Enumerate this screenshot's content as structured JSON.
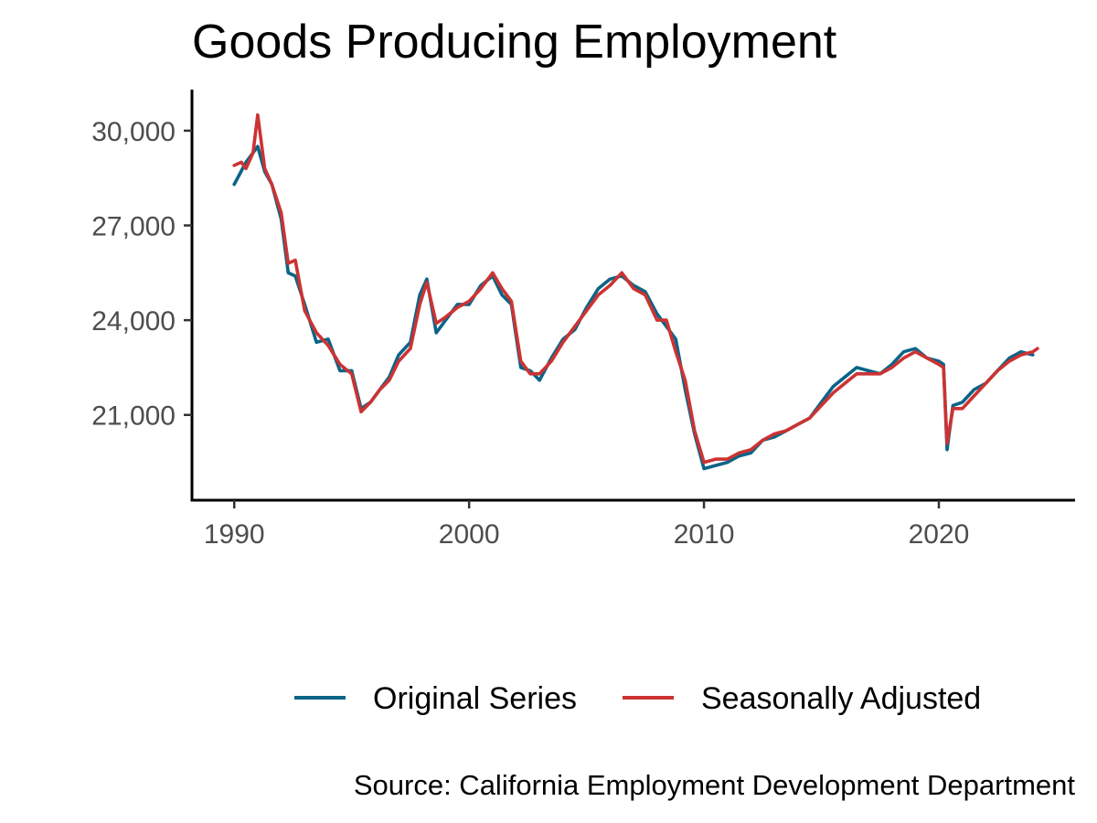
{
  "chart_data": {
    "type": "line",
    "title": "Goods Producing Employment",
    "xlabel": "",
    "ylabel": "",
    "xlim": [
      1988.2,
      2025.8
    ],
    "ylim": [
      18300,
      31300
    ],
    "x_ticks": [
      1990,
      2000,
      2010,
      2020
    ],
    "x_tick_labels": [
      "1990",
      "2000",
      "2010",
      "2020"
    ],
    "y_ticks": [
      21000,
      24000,
      27000,
      30000
    ],
    "y_tick_labels": [
      "21,000",
      "24,000",
      "27,000",
      "30,000"
    ],
    "grid": false,
    "legend_position": "bottom",
    "caption": "Source: California Employment Development Department",
    "series": [
      {
        "name": "Original Series",
        "color": "#0b6487",
        "x": [
          1990.0,
          1990.5,
          1991.0,
          1991.3,
          1991.6,
          1992.0,
          1992.3,
          1992.6,
          1993.0,
          1993.5,
          1994.0,
          1994.5,
          1995.0,
          1995.4,
          1995.8,
          1996.2,
          1996.6,
          1997.0,
          1997.5,
          1997.9,
          1998.2,
          1998.6,
          1999.0,
          1999.5,
          2000.0,
          2000.5,
          2001.0,
          2001.4,
          2001.8,
          2002.2,
          2002.6,
          2003.0,
          2003.5,
          2004.0,
          2004.5,
          2005.0,
          2005.5,
          2006.0,
          2006.5,
          2007.0,
          2007.5,
          2008.0,
          2008.4,
          2008.8,
          2009.2,
          2009.6,
          2010.0,
          2010.5,
          2011.0,
          2011.5,
          2012.0,
          2012.5,
          2013.0,
          2013.5,
          2014.0,
          2014.5,
          2015.0,
          2015.5,
          2016.0,
          2016.5,
          2017.0,
          2017.5,
          2018.0,
          2018.5,
          2019.0,
          2019.5,
          2020.0,
          2020.2,
          2020.35,
          2020.6,
          2021.0,
          2021.5,
          2022.0,
          2022.5,
          2023.0,
          2023.5,
          2024.0
        ],
        "values": [
          28300,
          29000,
          29500,
          28700,
          28300,
          27200,
          25500,
          25400,
          24500,
          23300,
          23400,
          22400,
          22400,
          21200,
          21400,
          21800,
          22200,
          22900,
          23300,
          24800,
          25300,
          23600,
          24000,
          24500,
          24500,
          25100,
          25400,
          24800,
          24500,
          22500,
          22400,
          22100,
          22800,
          23400,
          23700,
          24400,
          25000,
          25300,
          25400,
          25100,
          24900,
          24200,
          23800,
          23400,
          21800,
          20400,
          19300,
          19400,
          19500,
          19700,
          19800,
          20200,
          20300,
          20500,
          20700,
          20900,
          21400,
          21900,
          22200,
          22500,
          22400,
          22300,
          22600,
          23000,
          23100,
          22800,
          22700,
          22600,
          19900,
          21300,
          21400,
          21800,
          22000,
          22400,
          22800,
          23000,
          22900
        ]
      },
      {
        "name": "Seasonally Adjusted",
        "color": "#cc3333",
        "x": [
          1990.0,
          1990.3,
          1990.5,
          1990.8,
          1991.0,
          1991.3,
          1991.6,
          1992.0,
          1992.3,
          1992.6,
          1993.0,
          1993.5,
          1994.0,
          1994.5,
          1995.0,
          1995.4,
          1995.8,
          1996.2,
          1996.6,
          1997.0,
          1997.5,
          1997.9,
          1998.2,
          1998.6,
          1999.0,
          1999.5,
          2000.0,
          2000.5,
          2001.0,
          2001.4,
          2001.8,
          2002.2,
          2002.6,
          2003.0,
          2003.5,
          2004.0,
          2004.5,
          2005.0,
          2005.5,
          2006.0,
          2006.5,
          2007.0,
          2007.5,
          2008.0,
          2008.4,
          2008.8,
          2009.2,
          2009.6,
          2010.0,
          2010.5,
          2011.0,
          2011.5,
          2012.0,
          2012.5,
          2013.0,
          2013.5,
          2014.0,
          2014.5,
          2015.0,
          2015.5,
          2016.0,
          2016.5,
          2017.0,
          2017.5,
          2018.0,
          2018.5,
          2019.0,
          2019.5,
          2020.0,
          2020.2,
          2020.35,
          2020.6,
          2021.0,
          2021.5,
          2022.0,
          2022.5,
          2023.0,
          2023.5,
          2024.0,
          2024.2
        ],
        "values": [
          28900,
          29000,
          28800,
          29300,
          30500,
          28800,
          28300,
          27400,
          25800,
          25900,
          24300,
          23600,
          23200,
          22600,
          22300,
          21100,
          21400,
          21800,
          22100,
          22700,
          23100,
          24500,
          25200,
          23900,
          24100,
          24400,
          24600,
          25000,
          25500,
          25000,
          24600,
          22700,
          22300,
          22300,
          22700,
          23300,
          23800,
          24300,
          24800,
          25100,
          25500,
          25000,
          24800,
          24000,
          24000,
          23000,
          22100,
          20500,
          19500,
          19600,
          19600,
          19800,
          19900,
          20200,
          20400,
          20500,
          20700,
          20900,
          21300,
          21700,
          22000,
          22300,
          22300,
          22300,
          22500,
          22800,
          23000,
          22800,
          22600,
          22500,
          20100,
          21200,
          21200,
          21600,
          22000,
          22400,
          22700,
          22900,
          23000,
          23100
        ]
      }
    ]
  }
}
